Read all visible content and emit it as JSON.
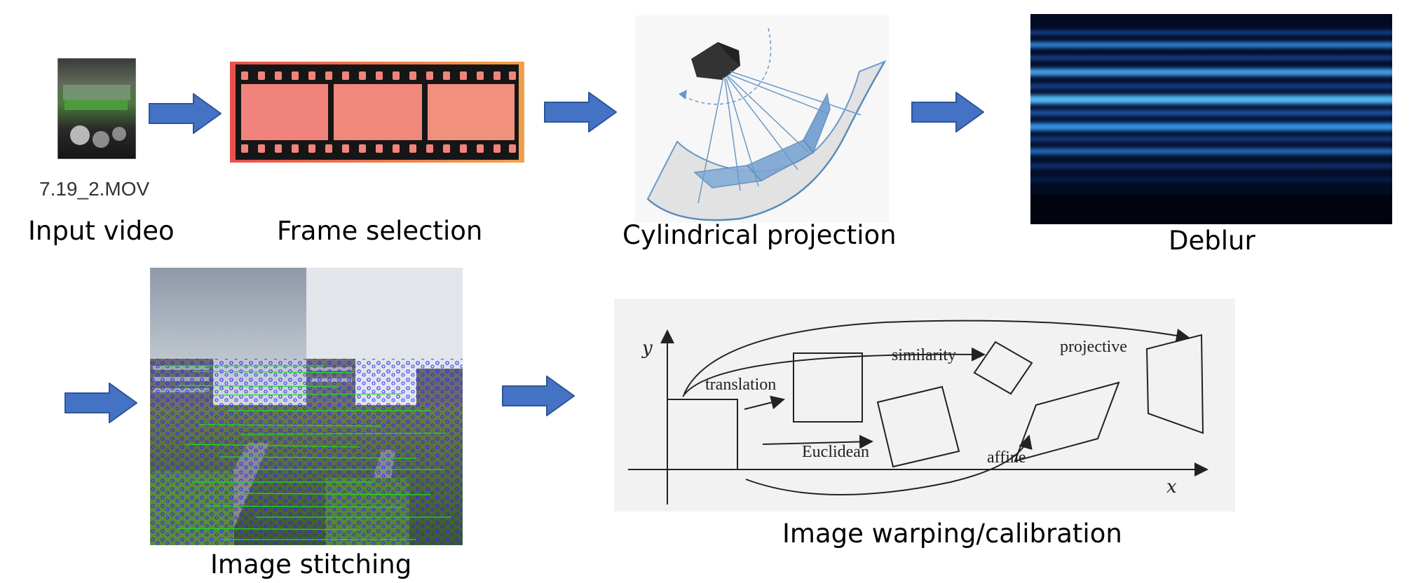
{
  "colors": {
    "arrow": "#4472c4",
    "arrow_stroke": "#2f5597",
    "film": "#1a1a1a",
    "film_frame": "#f0847c",
    "deblur_dark": "#02081c",
    "deblur_streak": "#3aa6ff",
    "keypoint": "#2222ff",
    "match_line": "#22dd22",
    "diagram_bg": "#f2f2f2"
  },
  "steps": {
    "input_video": {
      "label": "Input video",
      "filename": "7.19_2.MOV"
    },
    "frame_selection": {
      "label": "Frame selection"
    },
    "cylindrical_projection": {
      "label": "Cylindrical projection"
    },
    "deblur": {
      "label": "Deblur"
    },
    "image_stitching": {
      "label": "Image stitching"
    },
    "image_warping": {
      "label": "Image warping/calibration",
      "diagram": {
        "y_axis": "y",
        "x_axis": "x",
        "translation": "translation",
        "similarity": "similarity",
        "projective": "projective",
        "euclidean": "Euclidean",
        "affine": "affine"
      }
    }
  }
}
